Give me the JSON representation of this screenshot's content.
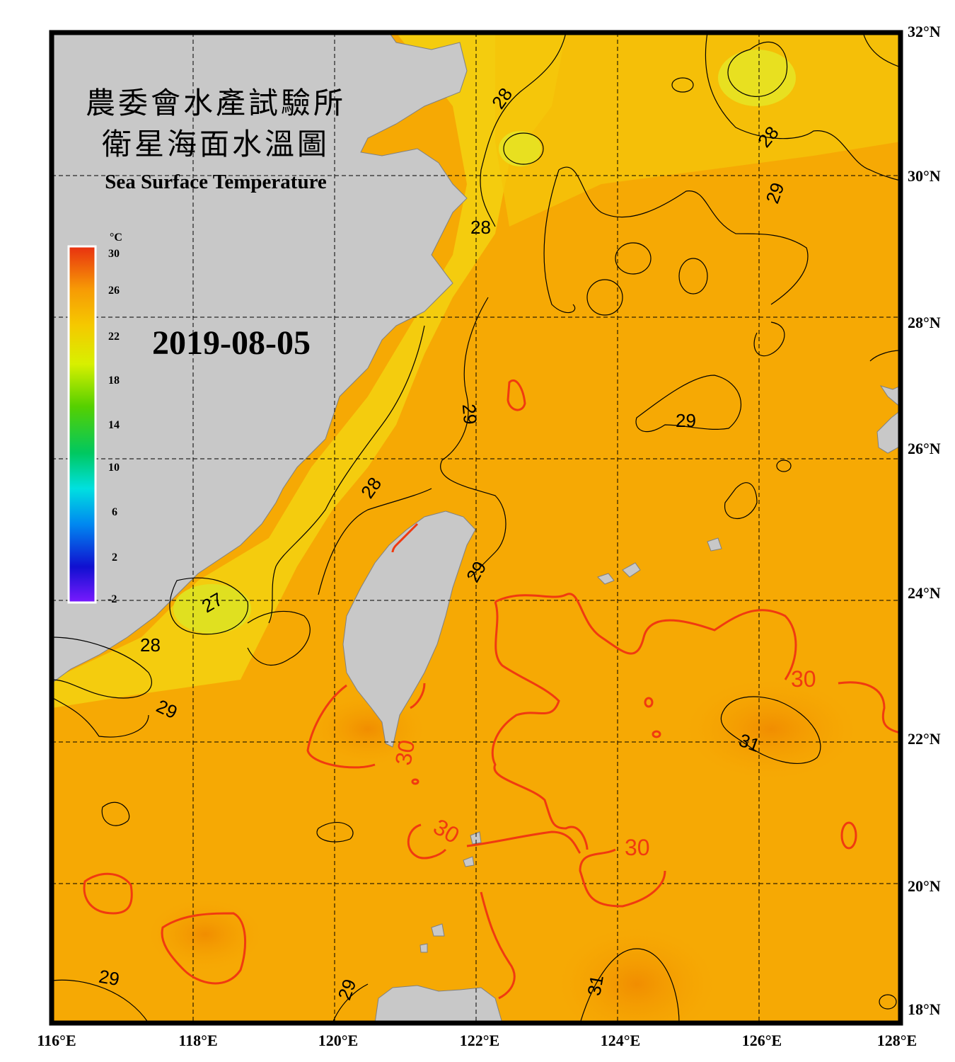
{
  "title": {
    "line1": "農委會水產試驗所",
    "line2": "衛星海面水溫圖",
    "english": "Sea Surface Temperature"
  },
  "date": "2019-08-05",
  "colorbar": {
    "unit": "°C",
    "ticks": [
      "30",
      "26",
      "22",
      "18",
      "14",
      "10",
      "6",
      "2",
      "-2"
    ],
    "colors": [
      "#e83010",
      "#f79a05",
      "#f5c800",
      "#d8f000",
      "#55d000",
      "#00c860",
      "#00e0e0",
      "#0088f0",
      "#1010d0",
      "#7a1aff"
    ]
  },
  "axes": {
    "lat_labels": [
      "32°N",
      "30°N",
      "28°N",
      "26°N",
      "24°N",
      "22°N",
      "20°N",
      "18°N"
    ],
    "lon_labels": [
      "116°E",
      "118°E",
      "120°E",
      "122°E",
      "124°E",
      "126°E",
      "128°E"
    ]
  },
  "isotherm_labels": {
    "black": [
      "28",
      "28",
      "29",
      "28",
      "29",
      "29",
      "28",
      "27",
      "28",
      "29",
      "29",
      "29",
      "31",
      "31",
      "29"
    ],
    "red": [
      "30",
      "30",
      "30",
      "30"
    ]
  },
  "colors": {
    "land": "#c8c8c8",
    "sea_warm": "#f5a800",
    "sea_cool": "#f4d800",
    "isotherm_red": "#f03a10",
    "isotherm_black": "#000000"
  }
}
